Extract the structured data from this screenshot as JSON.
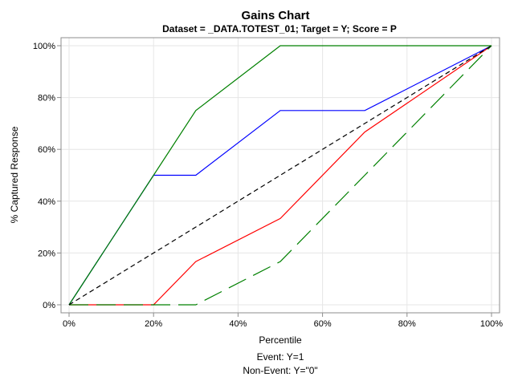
{
  "chart_data": {
    "type": "line",
    "title": "Gains Chart",
    "subtitle": "Dataset = _DATA.TOTEST_01; Target = Y; Score = P",
    "xlabel": "Percentile",
    "ylabel": "% Captured Response",
    "xlim": [
      0,
      100
    ],
    "ylim": [
      0,
      100
    ],
    "xticks": [
      "0%",
      "20%",
      "40%",
      "60%",
      "80%",
      "100%"
    ],
    "yticks": [
      "0%",
      "20%",
      "40%",
      "60%",
      "80%",
      "100%"
    ],
    "grid": true,
    "notes": [
      "Event: Y=1",
      "Non-Event: Y=\"0\""
    ],
    "series": [
      {
        "color": "#0000ff",
        "dash": "solid",
        "x": [
          0,
          20,
          20,
          30,
          50,
          70,
          100
        ],
        "y": [
          0,
          50,
          50,
          50,
          75,
          75,
          100
        ]
      },
      {
        "color": "#ff0000",
        "dash": "solid",
        "x": [
          0,
          20,
          30,
          50,
          70,
          100
        ],
        "y": [
          0,
          0,
          16.7,
          33.3,
          66.7,
          100
        ]
      },
      {
        "color": "#008000",
        "dash": "solid",
        "x": [
          0,
          20,
          30,
          50,
          100
        ],
        "y": [
          0,
          50,
          75,
          100,
          100
        ]
      },
      {
        "color": "#008000",
        "dash": "long-dash",
        "x": [
          0,
          30,
          50,
          70,
          100
        ],
        "y": [
          0,
          0,
          16.7,
          50,
          100
        ]
      },
      {
        "color": "#000000",
        "dash": "dash",
        "x": [
          0,
          100
        ],
        "y": [
          0,
          100
        ]
      }
    ]
  }
}
